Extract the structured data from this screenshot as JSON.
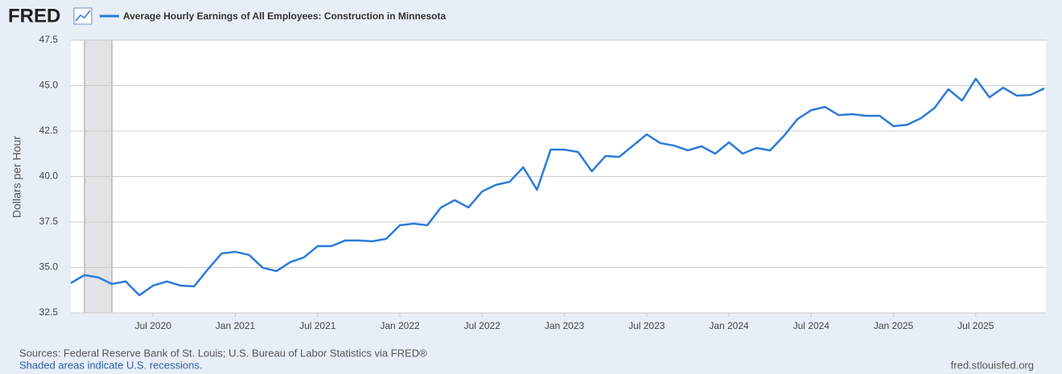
{
  "logo": "FRED",
  "footer": {
    "source": "Sources: Federal Reserve Bank of St. Louis; U.S. Bureau of Labor Statistics via FRED®",
    "note": "Shaded areas indicate U.S. recessions.",
    "url": "fred.stlouisfed.org"
  },
  "chart_data": {
    "type": "line",
    "y_label": "Dollars per Hour",
    "categories": [
      null,
      null,
      null,
      null,
      null,
      null,
      "Jul 2020",
      null,
      null,
      null,
      null,
      null,
      "Jan 2021",
      null,
      null,
      null,
      null,
      null,
      "Jul 2021",
      null,
      null,
      null,
      null,
      null,
      "Jan 2022",
      null,
      null,
      null,
      null,
      null,
      "Jul 2022",
      null,
      null,
      null,
      null,
      null,
      "Jan 2023",
      null,
      null,
      null,
      null,
      null,
      "Jul 2023",
      null,
      null,
      null,
      null,
      null,
      "Jan 2024",
      null,
      null,
      null,
      null,
      null,
      "Jul 2024",
      null,
      null,
      null,
      null,
      null,
      "Jan 2025",
      null,
      null,
      null,
      null,
      null,
      "Jul 2025",
      null,
      null,
      null,
      null,
      null
    ],
    "series": [
      {
        "name": "Average Hourly Earnings of All Employees: Construction in Minnesota",
        "color": "#2b7bd9",
        "values": [
          34.14,
          34.58,
          34.45,
          34.09,
          34.23,
          33.47,
          34.0,
          34.23,
          34.0,
          33.96,
          34.9,
          35.77,
          35.86,
          35.69,
          34.98,
          34.8,
          35.29,
          35.55,
          36.17,
          36.17,
          36.48,
          36.48,
          36.44,
          36.57,
          37.32,
          37.41,
          37.32,
          38.3,
          38.7,
          38.3,
          39.18,
          39.54,
          39.71,
          40.51,
          39.27,
          41.48,
          41.48,
          41.35,
          40.29,
          41.13,
          41.08,
          41.7,
          42.32,
          41.84,
          41.7,
          41.44,
          41.66,
          41.26,
          41.88,
          41.26,
          41.57,
          41.44,
          42.23,
          43.16,
          43.65,
          43.83,
          43.38,
          43.43,
          43.34,
          43.34,
          42.77,
          42.85,
          43.21,
          43.78,
          44.8,
          44.18,
          45.38,
          44.36,
          44.89,
          44.45,
          44.49,
          44.85
        ]
      }
    ],
    "recessions": [
      [
        1,
        3
      ]
    ],
    "ylim": [
      32.5,
      47.5
    ],
    "yticks": [
      32.5,
      {
        "value": 35,
        "label": "35.0"
      },
      37.5,
      {
        "value": 40,
        "label": "40.0"
      },
      42.5,
      {
        "value": 45,
        "label": "45.0"
      },
      47.5
    ],
    "grid": true
  }
}
